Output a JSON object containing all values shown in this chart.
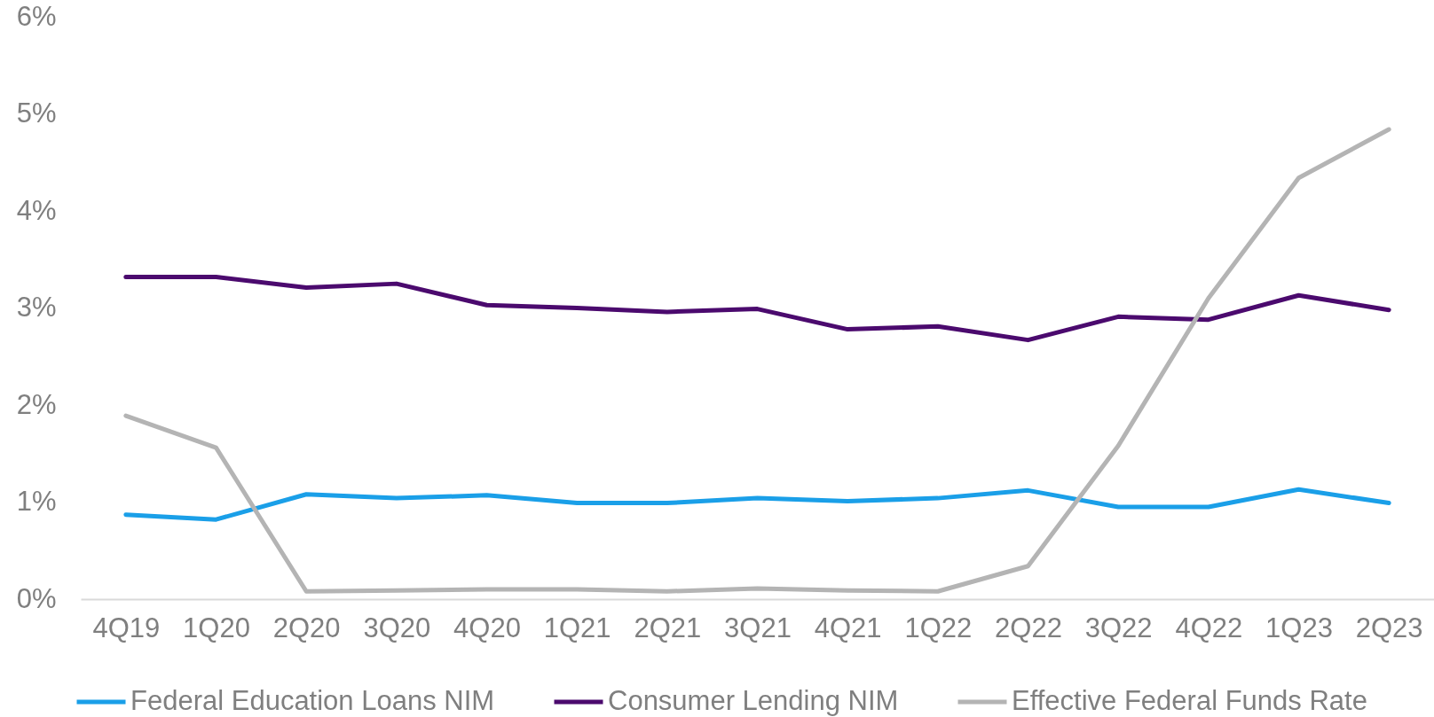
{
  "chart_data": {
    "type": "line",
    "categories": [
      "4Q19",
      "1Q20",
      "2Q20",
      "3Q20",
      "4Q20",
      "1Q21",
      "2Q21",
      "3Q21",
      "4Q21",
      "1Q22",
      "2Q22",
      "3Q22",
      "4Q22",
      "1Q23",
      "2Q23"
    ],
    "series": [
      {
        "name": "Federal Education Loans NIM",
        "color": "#1a9fe8",
        "values": [
          0.87,
          0.82,
          1.08,
          1.04,
          1.07,
          0.99,
          0.99,
          1.04,
          1.01,
          1.04,
          1.12,
          0.95,
          0.95,
          1.13,
          0.99
        ]
      },
      {
        "name": "Consumer Lending NIM",
        "color": "#4b0a6e",
        "values": [
          3.32,
          3.32,
          3.21,
          3.25,
          3.03,
          3.0,
          2.96,
          2.99,
          2.78,
          2.81,
          2.67,
          2.91,
          2.88,
          3.13,
          2.98
        ]
      },
      {
        "name": "Effective Federal Funds Rate",
        "color": "#b4b4b4",
        "values": [
          1.89,
          1.56,
          0.08,
          0.09,
          0.1,
          0.1,
          0.08,
          0.11,
          0.09,
          0.08,
          0.34,
          1.58,
          3.1,
          4.34,
          4.84
        ]
      }
    ],
    "ylim": [
      0,
      6
    ],
    "yticks": [
      {
        "value": 0,
        "label": "0%"
      },
      {
        "value": 1,
        "label": "1%"
      },
      {
        "value": 2,
        "label": "2%"
      },
      {
        "value": 3,
        "label": "3%"
      },
      {
        "value": 4,
        "label": "4%"
      },
      {
        "value": 5,
        "label": "5%"
      },
      {
        "value": 6,
        "label": "6%"
      }
    ],
    "grid": false,
    "legend": "bottom",
    "marker": "none",
    "line_style": "solid"
  }
}
